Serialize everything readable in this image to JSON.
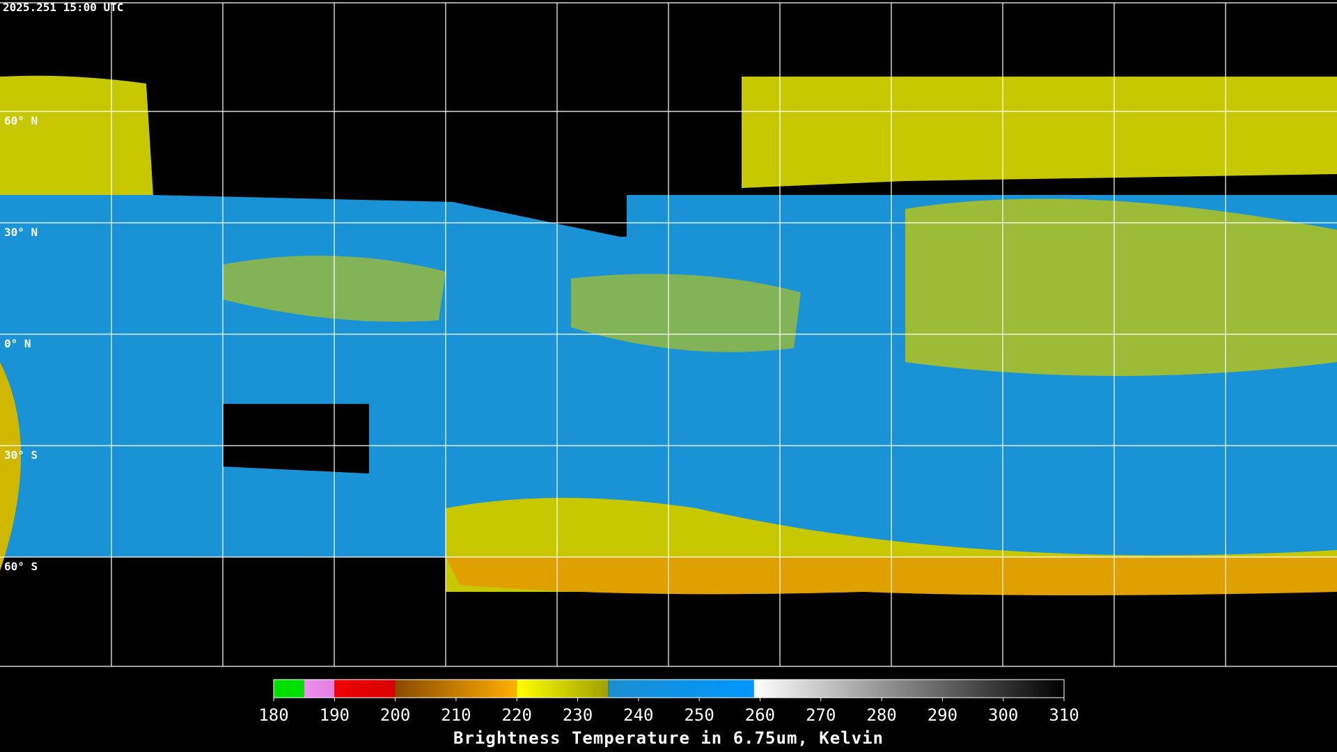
{
  "header": {
    "timestamp": "2025.251 15:00 UTC"
  },
  "map": {
    "latitude_labels": [
      "60° N",
      "30° N",
      "0° N",
      "30° S",
      "60° S"
    ]
  },
  "colorbar": {
    "range": [
      180,
      310
    ],
    "ticks": [
      180,
      190,
      200,
      210,
      220,
      230,
      240,
      250,
      260,
      270,
      280,
      290,
      300,
      310
    ],
    "segments": [
      {
        "from": 180,
        "to": 185,
        "colors": [
          "#00e000",
          "#00e000"
        ]
      },
      {
        "from": 185,
        "to": 190,
        "colors": [
          "#f08ef0",
          "#e080e0"
        ]
      },
      {
        "from": 190,
        "to": 200,
        "colors": [
          "#f00000",
          "#d80000"
        ]
      },
      {
        "from": 200,
        "to": 220,
        "colors": [
          "#8a4a00",
          "#ffb000"
        ]
      },
      {
        "from": 220,
        "to": 235,
        "colors": [
          "#ffff00",
          "#a0a000"
        ]
      },
      {
        "from": 235,
        "to": 259,
        "colors": [
          "#1a8fd0",
          "#0096ff"
        ]
      },
      {
        "from": 259,
        "to": 310,
        "colors": [
          "#ffffff",
          "#000000"
        ]
      }
    ],
    "title": "Brightness Temperature in 6.75um, Kelvin"
  }
}
